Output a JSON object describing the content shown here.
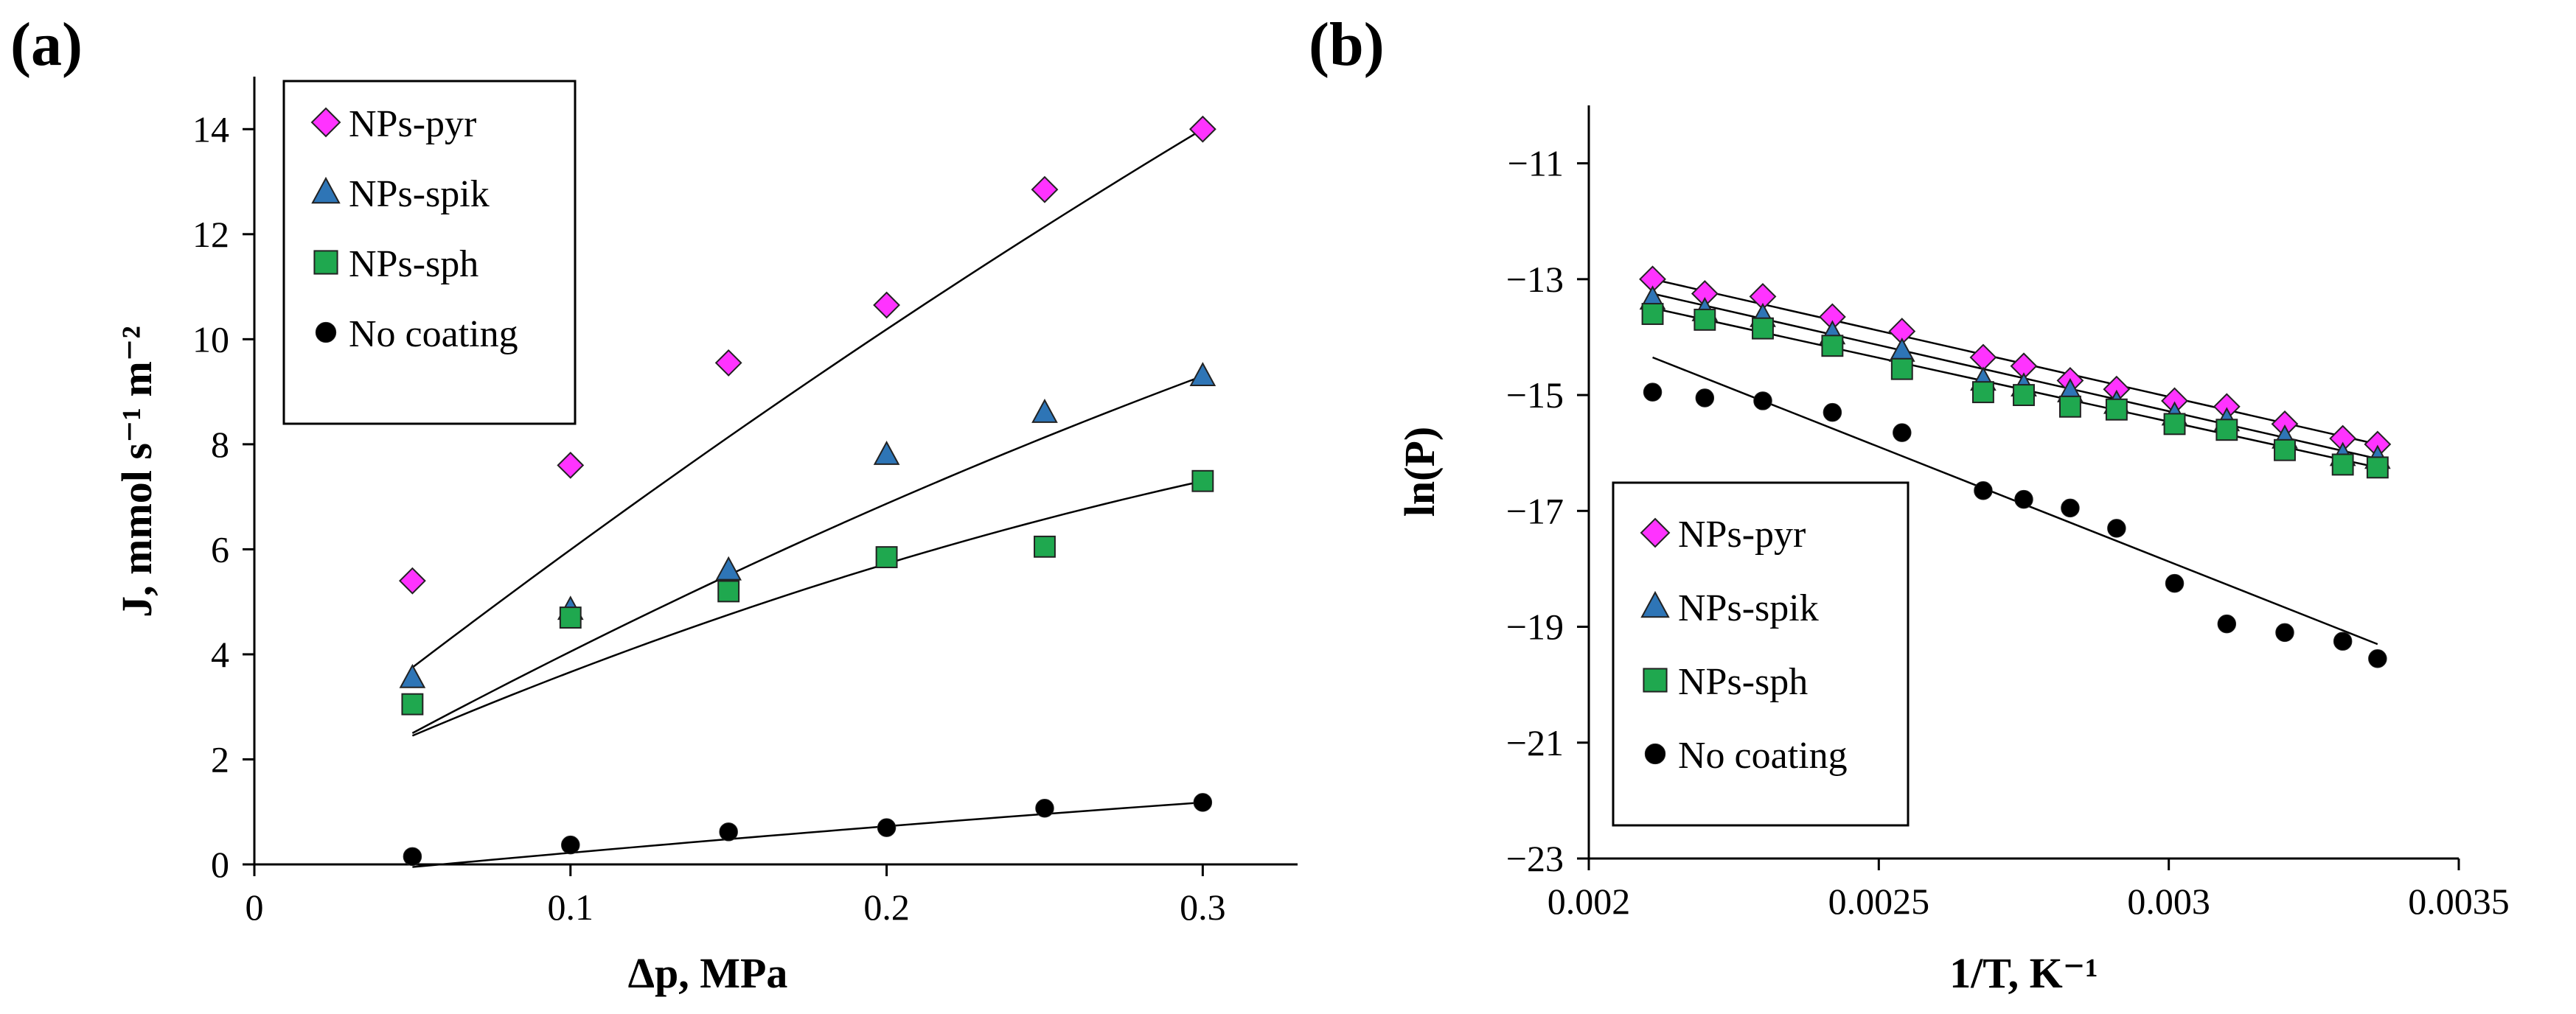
{
  "figure": {
    "panels": [
      "(a)",
      "(b)"
    ]
  },
  "colors": {
    "NPs-pyr": "#ff33ff",
    "NPs-spik": "#2e75b6",
    "NPs-sph": "#1fa84f",
    "No coating": "#000000"
  },
  "markers": {
    "NPs-pyr": "diamond",
    "NPs-spik": "triangle",
    "NPs-sph": "square",
    "No coating": "circle"
  },
  "chart_data": [
    {
      "panel": "(a)",
      "type": "scatter",
      "xlabel": "Δp, MPa",
      "ylabel": "J, mmol s⁻¹ m⁻²",
      "xlim": [
        0,
        0.33
      ],
      "ylim": [
        0,
        15
      ],
      "xticks": [
        0,
        0.1,
        0.2,
        0.3
      ],
      "xtick_labels": [
        "0",
        "0.1",
        "0.2",
        "0.3"
      ],
      "yticks": [
        0,
        2,
        4,
        6,
        8,
        10,
        12,
        14
      ],
      "ytick_labels": [
        "0",
        "2",
        "4",
        "6",
        "8",
        "10",
        "12",
        "14"
      ],
      "grid": false,
      "legend_position": "top-left",
      "trendline": "polynomial (order 2)",
      "series": [
        {
          "name": "NPs-pyr",
          "x": [
            0.05,
            0.1,
            0.15,
            0.2,
            0.25,
            0.3
          ],
          "y": [
            5.4,
            7.6,
            9.55,
            10.65,
            12.85,
            14.0
          ],
          "fit": [
            3.75,
            0.3,
            -0.015
          ]
        },
        {
          "name": "NPs-spik",
          "x": [
            0.05,
            0.1,
            0.15,
            0.2,
            0.25,
            0.3
          ],
          "y": [
            3.55,
            4.85,
            5.6,
            7.8,
            8.6,
            9.3
          ],
          "fit": [
            2.5,
            0.3,
            -0.02
          ]
        },
        {
          "name": "NPs-sph",
          "x": [
            0.05,
            0.1,
            0.15,
            0.2,
            0.25,
            0.3
          ],
          "y": [
            3.05,
            4.7,
            5.2,
            5.85,
            6.05,
            7.3
          ],
          "fit": [
            2.45,
            0.19,
            -0.23
          ]
        },
        {
          "name": "No coating",
          "x": [
            0.05,
            0.1,
            0.15,
            0.2,
            0.25,
            0.3
          ],
          "y": [
            0.15,
            0.37,
            0.62,
            0.7,
            1.07,
            1.18
          ],
          "fit": [
            -0.05,
            0.04,
            0.0
          ]
        }
      ]
    },
    {
      "panel": "(b)",
      "type": "scatter",
      "xlabel": "1/T, K⁻¹",
      "ylabel": "ln(P)",
      "xlim": [
        0.002,
        0.0035
      ],
      "ylim": [
        -23,
        -10
      ],
      "xticks": [
        0.002,
        0.0025,
        0.003,
        0.0035
      ],
      "xtick_labels": [
        "0.002",
        "0.0025",
        "0.003",
        "0.0035"
      ],
      "yticks": [
        -11,
        -13,
        -15,
        -17,
        -19,
        -21,
        -23
      ],
      "ytick_labels": [
        "−11",
        "−13",
        "−15",
        "−17",
        "−19",
        "−21",
        "−23"
      ],
      "grid": false,
      "legend_position": "bottom-left",
      "trendline": "linear",
      "series": [
        {
          "name": "NPs-pyr",
          "x": [
            0.00211,
            0.0022,
            0.0023,
            0.00242,
            0.00254,
            0.00268,
            0.00275,
            0.00283,
            0.00291,
            0.00301,
            0.0031,
            0.0032,
            0.0033,
            0.00336
          ],
          "y": [
            -13.0,
            -13.25,
            -13.3,
            -13.65,
            -13.9,
            -14.35,
            -14.5,
            -14.75,
            -14.9,
            -15.1,
            -15.2,
            -15.5,
            -15.75,
            -15.85
          ],
          "fit": [
            -13.0,
            -15.85
          ]
        },
        {
          "name": "NPs-spik",
          "x": [
            0.00211,
            0.0022,
            0.0023,
            0.00242,
            0.00254,
            0.00268,
            0.00275,
            0.00283,
            0.00291,
            0.00301,
            0.0031,
            0.0032,
            0.0033,
            0.00336
          ],
          "y": [
            -13.35,
            -13.55,
            -13.65,
            -13.95,
            -14.25,
            -14.75,
            -14.85,
            -14.95,
            -15.15,
            -15.35,
            -15.45,
            -15.75,
            -16.05,
            -16.1
          ],
          "fit": [
            -13.25,
            -16.1
          ]
        },
        {
          "name": "NPs-sph",
          "x": [
            0.00211,
            0.0022,
            0.0023,
            0.00242,
            0.00254,
            0.00268,
            0.00275,
            0.00283,
            0.00291,
            0.00301,
            0.0031,
            0.0032,
            0.0033,
            0.00336
          ],
          "y": [
            -13.6,
            -13.7,
            -13.85,
            -14.15,
            -14.55,
            -14.95,
            -15.0,
            -15.2,
            -15.25,
            -15.5,
            -15.6,
            -15.95,
            -16.2,
            -16.25
          ],
          "fit": [
            -13.5,
            -16.25
          ]
        },
        {
          "name": "No coating",
          "x": [
            0.00211,
            0.0022,
            0.0023,
            0.00242,
            0.00254,
            0.00268,
            0.00275,
            0.00283,
            0.00291,
            0.00301,
            0.0031,
            0.0032,
            0.0033,
            0.00336
          ],
          "y": [
            -14.95,
            -15.05,
            -15.1,
            -15.3,
            -15.65,
            -16.65,
            -16.8,
            -16.95,
            -17.3,
            -18.25,
            -18.95,
            -19.1,
            -19.25,
            -19.55
          ],
          "fit": [
            -14.35,
            -19.3
          ]
        }
      ]
    }
  ]
}
